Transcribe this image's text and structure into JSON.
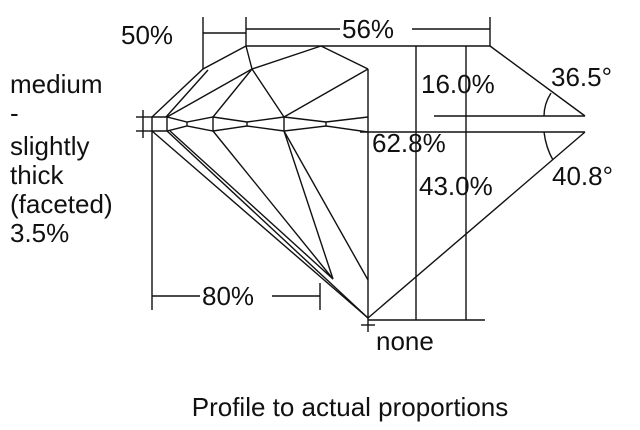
{
  "labels": {
    "table_percent": "56%",
    "star_percent": "50%",
    "crown_height": "16.0%",
    "crown_angle": "36.5°",
    "total_depth": "62.8%",
    "pavilion_depth": "43.0%",
    "pavilion_angle": "40.8°",
    "lower_half_percent": "80%",
    "culet": "none",
    "girdle": [
      "medium",
      "-",
      "slightly",
      "thick",
      "(faceted)",
      "3.5%"
    ]
  },
  "caption": "Profile to actual proportions"
}
